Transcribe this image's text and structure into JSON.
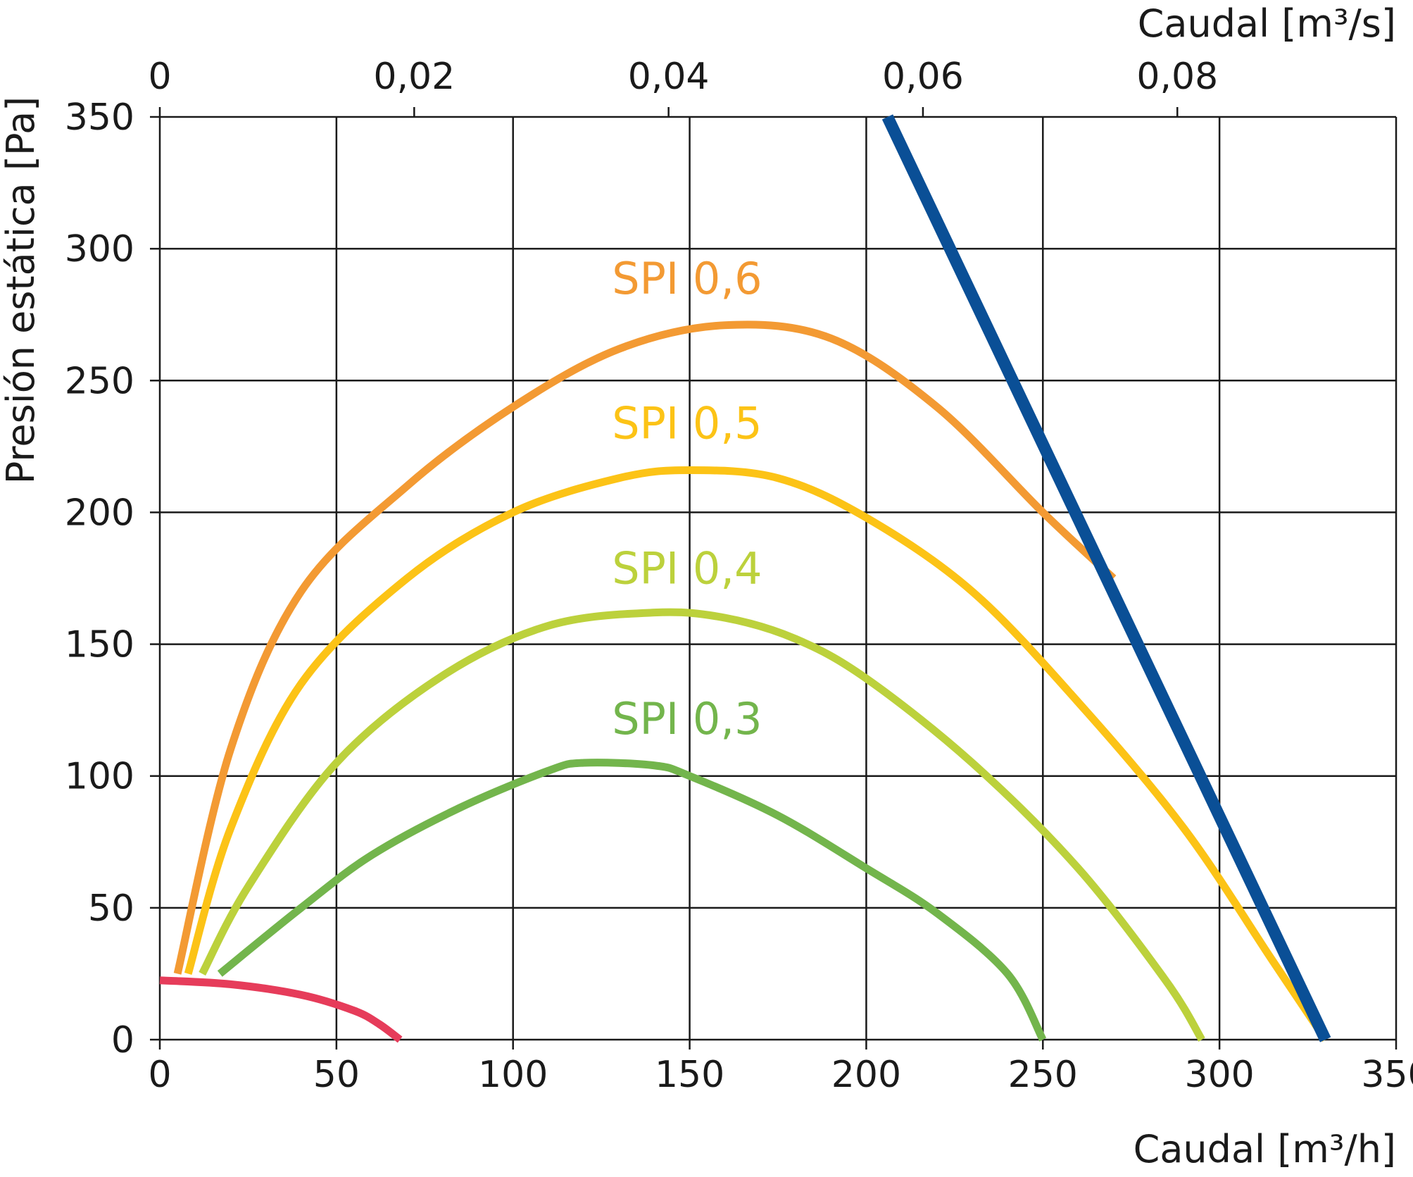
{
  "chart_data": {
    "type": "line",
    "title": "",
    "xlabel": "Caudal [m³/h]",
    "x2label": "Caudal [m³/s]",
    "ylabel": "Presión estática [Pa]",
    "xlim": [
      0,
      350
    ],
    "ylim": [
      0,
      350
    ],
    "x2lim": [
      0,
      0.0972
    ],
    "grid": true,
    "x_ticks": [
      0,
      50,
      100,
      150,
      200,
      250,
      300,
      350
    ],
    "x_tick_labels": [
      "0",
      "50",
      "100",
      "150",
      "200",
      "250",
      "300",
      "350"
    ],
    "y_ticks": [
      0,
      50,
      100,
      150,
      200,
      250,
      300,
      350
    ],
    "y_tick_labels": [
      "0",
      "50",
      "100",
      "150",
      "200",
      "250",
      "300",
      "350"
    ],
    "x2_ticks": [
      0,
      0.02,
      0.04,
      0.06,
      0.08
    ],
    "x2_tick_labels": [
      "0",
      "0,02",
      "0,04",
      "0,06",
      "0,08"
    ],
    "series": [
      {
        "name": "SPI 0,6",
        "color": "#f39a33",
        "label_at": [
          128,
          283
        ],
        "points": [
          [
            5,
            25
          ],
          [
            20,
            110
          ],
          [
            40,
            170
          ],
          [
            70,
            210
          ],
          [
            100,
            240
          ],
          [
            130,
            262
          ],
          [
            160,
            271
          ],
          [
            190,
            266
          ],
          [
            220,
            240
          ],
          [
            250,
            200
          ],
          [
            270,
            175
          ]
        ]
      },
      {
        "name": "SPI 0,5",
        "color": "#fcc316",
        "label_at": [
          128,
          228
        ],
        "points": [
          [
            8,
            25
          ],
          [
            20,
            80
          ],
          [
            40,
            135
          ],
          [
            70,
            175
          ],
          [
            100,
            200
          ],
          [
            130,
            213
          ],
          [
            150,
            216
          ],
          [
            175,
            213
          ],
          [
            200,
            198
          ],
          [
            230,
            170
          ],
          [
            260,
            128
          ],
          [
            290,
            80
          ],
          [
            315,
            30
          ],
          [
            330,
            0
          ]
        ]
      },
      {
        "name": "SPI 0,4",
        "color": "#bcd13c",
        "label_at": [
          128,
          173
        ],
        "points": [
          [
            12,
            25
          ],
          [
            25,
            58
          ],
          [
            50,
            105
          ],
          [
            80,
            138
          ],
          [
            110,
            157
          ],
          [
            140,
            162
          ],
          [
            160,
            160
          ],
          [
            180,
            152
          ],
          [
            200,
            137
          ],
          [
            230,
            105
          ],
          [
            260,
            65
          ],
          [
            285,
            22
          ],
          [
            295,
            0
          ]
        ]
      },
      {
        "name": "SPI 0,3",
        "color": "#73b54c",
        "label_at": [
          128,
          116
        ],
        "points": [
          [
            17,
            25
          ],
          [
            40,
            50
          ],
          [
            60,
            70
          ],
          [
            85,
            88
          ],
          [
            110,
            102
          ],
          [
            120,
            105
          ],
          [
            140,
            104
          ],
          [
            150,
            100
          ],
          [
            175,
            85
          ],
          [
            200,
            65
          ],
          [
            220,
            48
          ],
          [
            240,
            25
          ],
          [
            250,
            0
          ]
        ]
      },
      {
        "color": "#e63c5a",
        "points": [
          [
            0,
            22.5
          ],
          [
            20,
            21
          ],
          [
            40,
            17
          ],
          [
            55,
            11
          ],
          [
            62,
            6
          ],
          [
            68,
            0
          ]
        ]
      },
      {
        "color": "#0a4f96",
        "points": [
          [
            206,
            350
          ],
          [
            330,
            0
          ]
        ]
      }
    ]
  }
}
